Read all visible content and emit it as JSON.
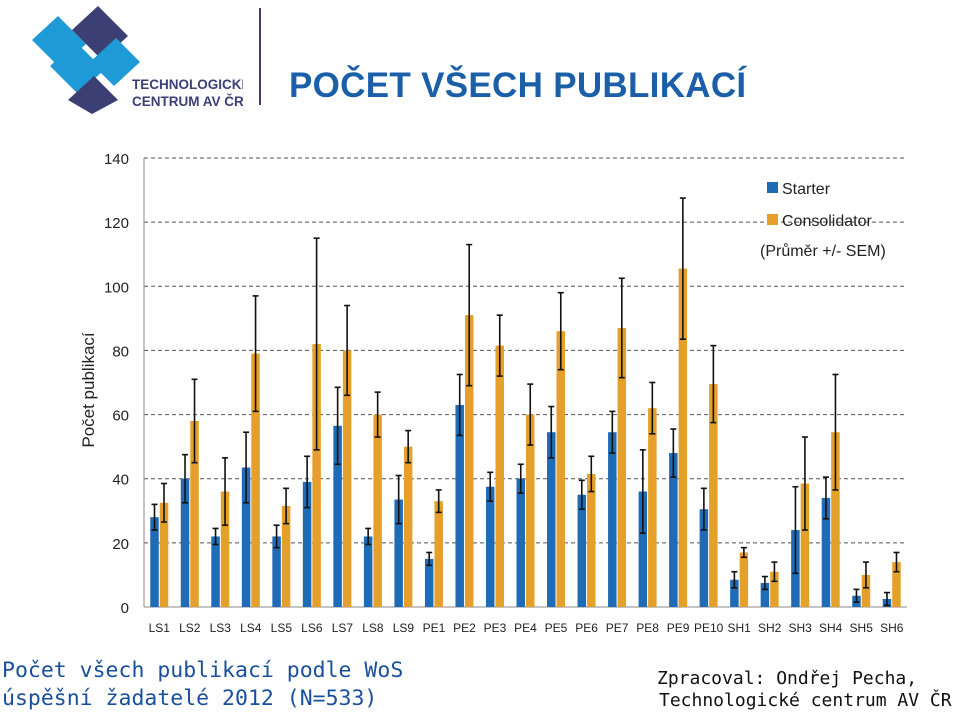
{
  "logo": {
    "line1": "TECHNOLOGICKÉ",
    "line2": "CENTRUM AV ČR"
  },
  "page": {
    "title": "POČET VŠECH PUBLIKACÍ"
  },
  "colors": {
    "starter": "#1f6bb5",
    "consolidator": "#e5a02b",
    "title": "#1a5fa8",
    "footer": "#1a4f9c",
    "logo": "#1e9ad6",
    "logo_dark": "#3b3f73"
  },
  "footer": {
    "left_line1": "Počet všech publikací podle WoS",
    "left_line2": "úspěšní žadatelé 2012 (N=533)",
    "right_line1": "Zpracoval: Ondřej Pecha,",
    "right_line2": "Technologické centrum AV ČR"
  },
  "chart_data": {
    "type": "bar",
    "ylabel": "Počet publikací",
    "ylim": [
      0,
      140
    ],
    "yticks": [
      0,
      20,
      40,
      60,
      80,
      100,
      120,
      140
    ],
    "grid": "dashed horizontal",
    "legend_position": "top-right",
    "legend_note": "(Průměr +/- SEM)",
    "categories": [
      "LS1",
      "LS2",
      "LS3",
      "LS4",
      "LS5",
      "LS6",
      "LS7",
      "LS8",
      "LS9",
      "PE1",
      "PE2",
      "PE3",
      "PE4",
      "PE5",
      "PE6",
      "PE7",
      "PE8",
      "PE9",
      "PE10",
      "SH1",
      "SH2",
      "SH3",
      "SH4",
      "SH5",
      "SH6"
    ],
    "series": [
      {
        "name": "Starter",
        "values": [
          28,
          40,
          22,
          43.5,
          22,
          39,
          56.5,
          22,
          33.5,
          15,
          63,
          37.5,
          40,
          54.5,
          35,
          54.5,
          36,
          48,
          30.5,
          8.5,
          7.5,
          24,
          34,
          3.5,
          2.5
        ],
        "errors": [
          4,
          7.5,
          2.5,
          11,
          3.5,
          8,
          12,
          2.5,
          7.5,
          2,
          9.5,
          4.5,
          4.5,
          8,
          4.5,
          6.5,
          13,
          7.5,
          6.5,
          2.5,
          2,
          13.5,
          6.5,
          2,
          2
        ]
      },
      {
        "name": "Consolidator",
        "values": [
          32.5,
          58,
          36,
          79,
          31.5,
          82,
          80,
          60,
          50,
          33,
          91,
          81.5,
          60,
          86,
          41.5,
          87,
          62,
          105.5,
          69.5,
          17,
          11,
          38.5,
          54.5,
          10,
          14
        ],
        "errors": [
          6,
          13,
          10.5,
          18,
          5.5,
          33,
          14,
          7,
          5,
          3.5,
          22,
          9.5,
          9.5,
          12,
          5.5,
          15.5,
          8,
          22,
          12,
          1.5,
          3,
          14.5,
          18,
          4,
          3
        ]
      }
    ]
  }
}
